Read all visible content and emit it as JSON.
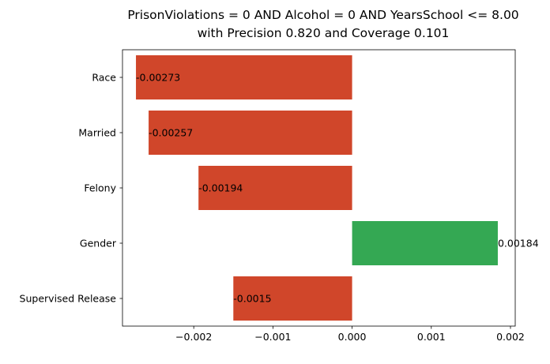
{
  "chart_data": {
    "type": "bar",
    "orientation": "horizontal",
    "title": "PrisonViolations = 0 AND Alcohol = 0 AND YearsSchool <= 8.00",
    "subtitle": "with Precision 0.820 and Coverage 0.101",
    "xlabel": "",
    "ylabel": "",
    "categories": [
      "Race",
      "Married",
      "Felony",
      "Gender",
      "Supervised Release"
    ],
    "values": [
      -0.00273,
      -0.00257,
      -0.00194,
      0.00184,
      -0.0015
    ],
    "value_labels": [
      "-0.00273",
      "-0.00257",
      "-0.00194",
      "0.00184",
      "-0.0015"
    ],
    "xlim": [
      -0.0029,
      0.00206
    ],
    "xticks": [
      -0.002,
      -0.001,
      0.0,
      0.001,
      0.002
    ],
    "xtick_labels": [
      "−0.002",
      "−0.001",
      "0.000",
      "0.001",
      "0.002"
    ],
    "grid": false,
    "colors": {
      "negative": "#d0462a",
      "positive": "#34a853"
    }
  }
}
